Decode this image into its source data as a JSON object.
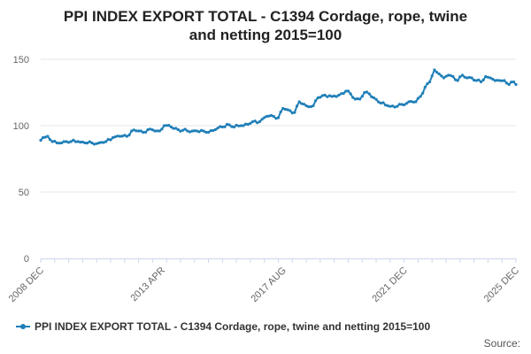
{
  "chart_data": {
    "type": "line",
    "title_line1": "PPI INDEX EXPORT TOTAL - C1394 Cordage, rope, twine",
    "title_line2": "and netting 2015=100",
    "xlabel": "",
    "ylabel": "",
    "ylim": [
      0,
      150
    ],
    "yticks": [
      0,
      50,
      100,
      150
    ],
    "x_tick_labels": [
      "2008 DEC",
      "2013 APR",
      "2017 AUG",
      "2021 DEC",
      "2025 DEC"
    ],
    "grid": true,
    "legend_position": "bottom",
    "series": [
      {
        "name": "PPI INDEX EXPORT TOTAL - C1394 Cordage, rope, twine and netting 2015=100",
        "color": "#1f7fb8",
        "start": "2008-12",
        "end": "2025-12",
        "points": [
          [
            "2008-12",
            89
          ],
          [
            "2009-01",
            91
          ],
          [
            "2009-03",
            92
          ],
          [
            "2009-05",
            88
          ],
          [
            "2009-07",
            87
          ],
          [
            "2009-10",
            88
          ],
          [
            "2010-01",
            88
          ],
          [
            "2010-04",
            88
          ],
          [
            "2010-07",
            87
          ],
          [
            "2010-10",
            87
          ],
          [
            "2011-01",
            87
          ],
          [
            "2011-04",
            88
          ],
          [
            "2011-07",
            91
          ],
          [
            "2011-10",
            92
          ],
          [
            "2012-01",
            92
          ],
          [
            "2012-03",
            96
          ],
          [
            "2012-06",
            96
          ],
          [
            "2012-08",
            95
          ],
          [
            "2012-10",
            97
          ],
          [
            "2013-01",
            96
          ],
          [
            "2013-03",
            96
          ],
          [
            "2013-05",
            100
          ],
          [
            "2013-08",
            99
          ],
          [
            "2013-11",
            97
          ],
          [
            "2014-03",
            96
          ],
          [
            "2014-07",
            96
          ],
          [
            "2014-11",
            95
          ],
          [
            "2015-03",
            97
          ],
          [
            "2015-06",
            99
          ],
          [
            "2015-08",
            101
          ],
          [
            "2015-11",
            99
          ],
          [
            "2016-02",
            100
          ],
          [
            "2016-05",
            101
          ],
          [
            "2016-07",
            103
          ],
          [
            "2016-10",
            103
          ],
          [
            "2017-01",
            107
          ],
          [
            "2017-04",
            107
          ],
          [
            "2017-06",
            106
          ],
          [
            "2017-08",
            113
          ],
          [
            "2017-10",
            112
          ],
          [
            "2018-01",
            110
          ],
          [
            "2018-03",
            118
          ],
          [
            "2018-06",
            115
          ],
          [
            "2018-09",
            115
          ],
          [
            "2018-11",
            121
          ],
          [
            "2019-02",
            123
          ],
          [
            "2019-05",
            122
          ],
          [
            "2019-08",
            123
          ],
          [
            "2019-11",
            126
          ],
          [
            "2020-01",
            124
          ],
          [
            "2020-03",
            120
          ],
          [
            "2020-05",
            120
          ],
          [
            "2020-07",
            125
          ],
          [
            "2020-09",
            124
          ],
          [
            "2020-11",
            121
          ],
          [
            "2021-02",
            117
          ],
          [
            "2021-05",
            115
          ],
          [
            "2021-08",
            114
          ],
          [
            "2021-11",
            116
          ],
          [
            "2022-02",
            118
          ],
          [
            "2022-05",
            118
          ],
          [
            "2022-07",
            122
          ],
          [
            "2022-09",
            129
          ],
          [
            "2022-11",
            133
          ],
          [
            "2023-01",
            142
          ],
          [
            "2023-03",
            139
          ],
          [
            "2023-05",
            136
          ],
          [
            "2023-07",
            138
          ],
          [
            "2023-09",
            137
          ],
          [
            "2023-11",
            134
          ],
          [
            "2024-01",
            138
          ],
          [
            "2024-03",
            136
          ],
          [
            "2024-05",
            136
          ],
          [
            "2024-07",
            134
          ],
          [
            "2024-09",
            133
          ],
          [
            "2024-11",
            137
          ],
          [
            "2025-01",
            136
          ],
          [
            "2025-03",
            134
          ],
          [
            "2025-05",
            134
          ],
          [
            "2025-07",
            134
          ],
          [
            "2025-09",
            131
          ],
          [
            "2025-11",
            133
          ],
          [
            "2025-12",
            131
          ]
        ]
      }
    ]
  },
  "legend": {
    "label": "PPI INDEX EXPORT TOTAL - C1394 Cordage, rope, twine and netting 2015=100"
  },
  "source_text": "Source:"
}
